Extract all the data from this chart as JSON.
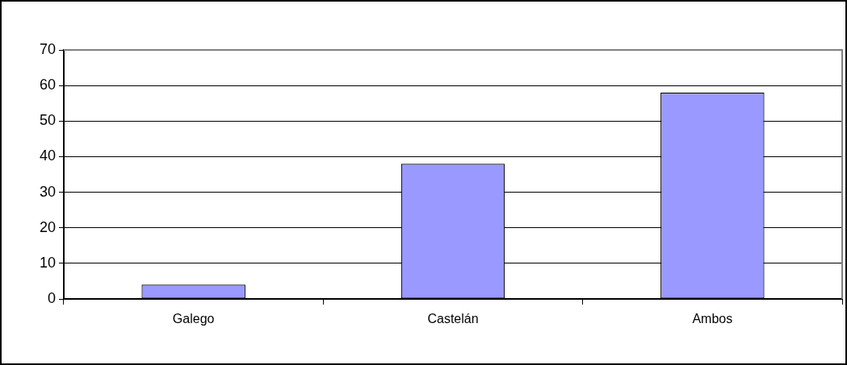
{
  "chart_data": {
    "type": "bar",
    "categories": [
      "Galego",
      "Castelán",
      "Ambos"
    ],
    "values": [
      4,
      38,
      58
    ],
    "color": "#9999ff",
    "ylim": [
      0,
      70
    ],
    "yticks": [
      0,
      10,
      20,
      30,
      40,
      50,
      60,
      70
    ],
    "grid": "y"
  }
}
